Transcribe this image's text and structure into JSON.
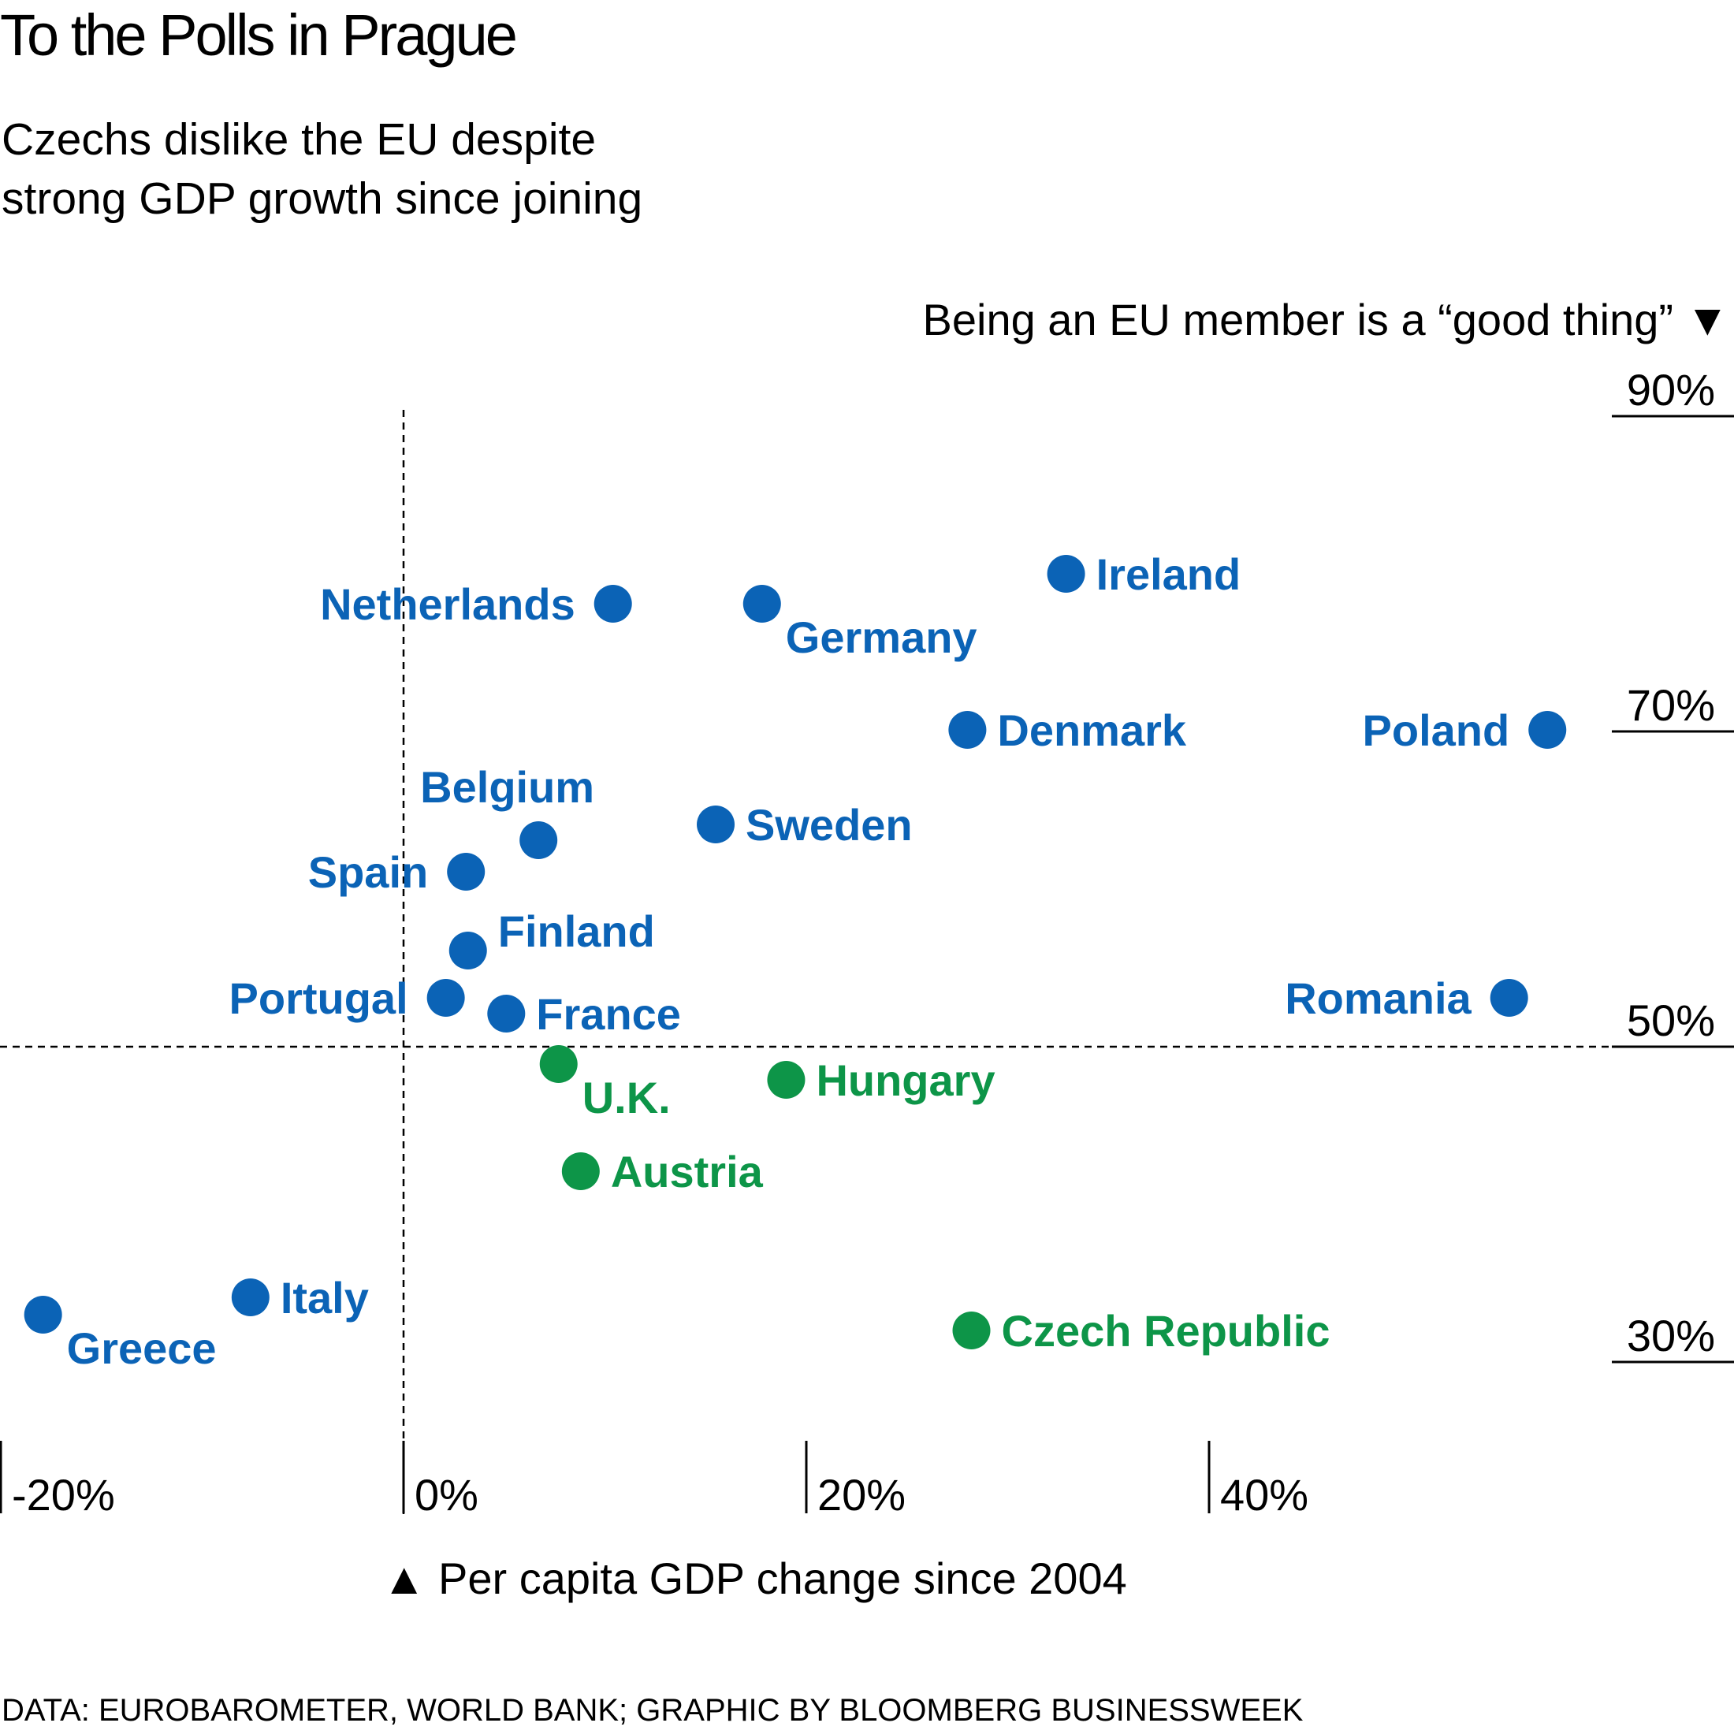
{
  "title": "To the Polls in Prague",
  "subtitle_lines": [
    "Czechs dislike the EU despite",
    "strong GDP growth since joining"
  ],
  "source": "DATA: EUROBAROMETER, WORLD BANK; GRAPHIC BY BLOOMBERG BUSINESSWEEK",
  "colors": {
    "above_50": "#0b63b6",
    "below_50": "#0d9548",
    "ink": "#000000"
  },
  "chart_data": {
    "type": "scatter",
    "xlabel": "▲ Per capita GDP change since 2004",
    "ylabel": "Being an EU member is a “good thing” ▼",
    "x_ticks": [
      {
        "value": -20,
        "label": "-20%"
      },
      {
        "value": 0,
        "label": "0%"
      },
      {
        "value": 20,
        "label": "20%"
      },
      {
        "value": 40,
        "label": "40%"
      }
    ],
    "y_ticks": [
      {
        "value": 90,
        "label": "90%"
      },
      {
        "value": 70,
        "label": "70%"
      },
      {
        "value": 50,
        "label": "50%"
      },
      {
        "value": 30,
        "label": "30%"
      }
    ],
    "xlim": [
      -20,
      66
    ],
    "ylim": [
      30,
      90
    ],
    "reference_lines": {
      "x": 0,
      "y": 50
    },
    "points": [
      {
        "country": "Netherlands",
        "x": 10.4,
        "y": 78.1,
        "group": "above_50",
        "label_side": "left"
      },
      {
        "country": "Germany",
        "x": 17.8,
        "y": 78.1,
        "group": "above_50",
        "label_side": "right-low"
      },
      {
        "country": "Ireland",
        "x": 32.9,
        "y": 80.0,
        "group": "above_50",
        "label_side": "right"
      },
      {
        "country": "Denmark",
        "x": 28.0,
        "y": 70.1,
        "group": "above_50",
        "label_side": "right"
      },
      {
        "country": "Poland",
        "x": 56.8,
        "y": 70.1,
        "group": "above_50",
        "label_side": "left"
      },
      {
        "country": "Belgium",
        "x": 6.7,
        "y": 63.1,
        "group": "above_50",
        "label_side": "above"
      },
      {
        "country": "Sweden",
        "x": 15.5,
        "y": 64.1,
        "group": "above_50",
        "label_side": "right"
      },
      {
        "country": "Spain",
        "x": 3.1,
        "y": 61.1,
        "group": "above_50",
        "label_side": "left"
      },
      {
        "country": "Finland",
        "x": 3.2,
        "y": 56.1,
        "group": "above_50",
        "label_side": "right-high"
      },
      {
        "country": "Portugal",
        "x": 2.1,
        "y": 53.1,
        "group": "above_50",
        "label_side": "left"
      },
      {
        "country": "France",
        "x": 5.1,
        "y": 52.1,
        "group": "above_50",
        "label_side": "right"
      },
      {
        "country": "Romania",
        "x": 54.9,
        "y": 53.1,
        "group": "above_50",
        "label_side": "left"
      },
      {
        "country": "U.K.",
        "x": 7.7,
        "y": 48.9,
        "group": "below_50",
        "label_side": "right-low"
      },
      {
        "country": "Hungary",
        "x": 19.0,
        "y": 47.9,
        "group": "below_50",
        "label_side": "right"
      },
      {
        "country": "Austria",
        "x": 8.8,
        "y": 42.1,
        "group": "below_50",
        "label_side": "right"
      },
      {
        "country": "Czech Republic",
        "x": 28.2,
        "y": 32.0,
        "group": "below_50",
        "label_side": "right"
      },
      {
        "country": "Italy",
        "x": -7.6,
        "y": 34.1,
        "group": "above_50",
        "label_side": "right"
      },
      {
        "country": "Greece",
        "x": -17.9,
        "y": 33.0,
        "group": "above_50",
        "label_side": "right-low"
      }
    ]
  }
}
